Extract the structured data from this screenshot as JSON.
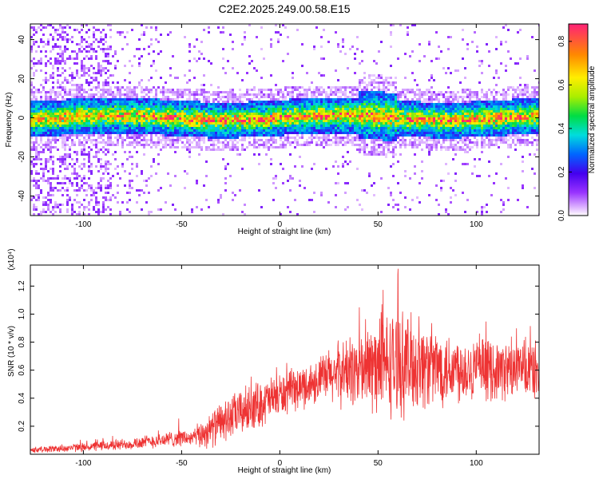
{
  "title": "C2E2.2025.249.00.58.E15",
  "chart_data": [
    {
      "type": "heatmap",
      "xlabel": "Height of straight line (km)",
      "ylabel": "Frequency (Hz)",
      "xlim": [
        -127,
        132
      ],
      "ylim": [
        -50,
        48
      ],
      "xticks": [
        -100,
        -50,
        0,
        50,
        100
      ],
      "yticks": [
        -40,
        -20,
        0,
        20,
        40
      ],
      "colorbar": {
        "label": "Normalized spectral amplitude",
        "range": [
          0,
          0.88
        ],
        "ticks": [
          "0.0",
          "0.2",
          "0.4",
          "0.6",
          "0.8"
        ],
        "tick_values": [
          0,
          0.2,
          0.4,
          0.6,
          0.8
        ]
      },
      "band_center_hz": 0,
      "band_halfwidth_hz": 7
    },
    {
      "type": "line",
      "xlabel": "Height of straight line (km)",
      "ylabel": "SNR (10 * v/v)",
      "exponent_label": "(x10⁴)",
      "xlim": [
        -127,
        132
      ],
      "ylim": [
        0,
        1.35
      ],
      "xticks": [
        -100,
        -50,
        0,
        50,
        100
      ],
      "yticks": [
        "0.2",
        "0.4",
        "0.6",
        "0.8",
        "1.0",
        "1.2"
      ],
      "ytick_values": [
        0.2,
        0.4,
        0.6,
        0.8,
        1.0,
        1.2
      ],
      "series": [
        {
          "color": "#ee3333",
          "envelope_x": [
            -127,
            -100,
            -80,
            -60,
            -50,
            -45,
            -40,
            -30,
            -20,
            -10,
            0,
            10,
            20,
            30,
            40,
            50,
            60,
            70,
            80,
            90,
            100,
            110,
            120,
            132
          ],
          "envelope_mean": [
            0.03,
            0.05,
            0.07,
            0.1,
            0.12,
            0.11,
            0.14,
            0.22,
            0.3,
            0.36,
            0.42,
            0.47,
            0.53,
            0.58,
            0.6,
            0.63,
            0.65,
            0.64,
            0.62,
            0.62,
            0.61,
            0.6,
            0.6,
            0.6
          ],
          "envelope_spread": [
            0.02,
            0.03,
            0.04,
            0.05,
            0.06,
            0.05,
            0.1,
            0.14,
            0.16,
            0.16,
            0.15,
            0.14,
            0.16,
            0.22,
            0.26,
            0.35,
            0.36,
            0.32,
            0.27,
            0.24,
            0.22,
            0.2,
            0.2,
            0.2
          ]
        }
      ]
    }
  ]
}
